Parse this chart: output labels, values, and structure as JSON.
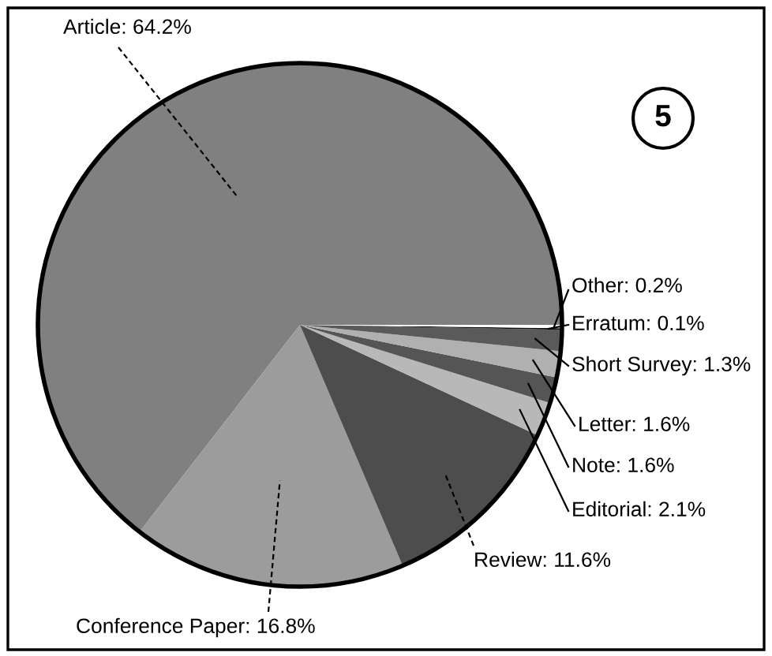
{
  "chart_data": {
    "type": "pie",
    "categories": [
      "Article",
      "Conference Paper",
      "Review",
      "Editorial",
      "Note",
      "Letter",
      "Short Survey",
      "Erratum",
      "Other"
    ],
    "values": [
      64.2,
      16.8,
      11.6,
      2.1,
      1.6,
      1.6,
      1.3,
      0.1,
      0.2
    ],
    "value_labels": [
      "64.2%",
      "16.8%",
      "11.6%",
      "2.1%",
      "1.6%",
      "1.6%",
      "1.3%",
      "0.1%",
      "0.2%"
    ],
    "colors": [
      "#808080",
      "#9c9c9c",
      "#4d4d4d",
      "#b8b8b8",
      "#555555",
      "#b0b0b0",
      "#5a5a5a",
      "#111111",
      "#ffffff"
    ],
    "annotations": [
      "5"
    ]
  }
}
